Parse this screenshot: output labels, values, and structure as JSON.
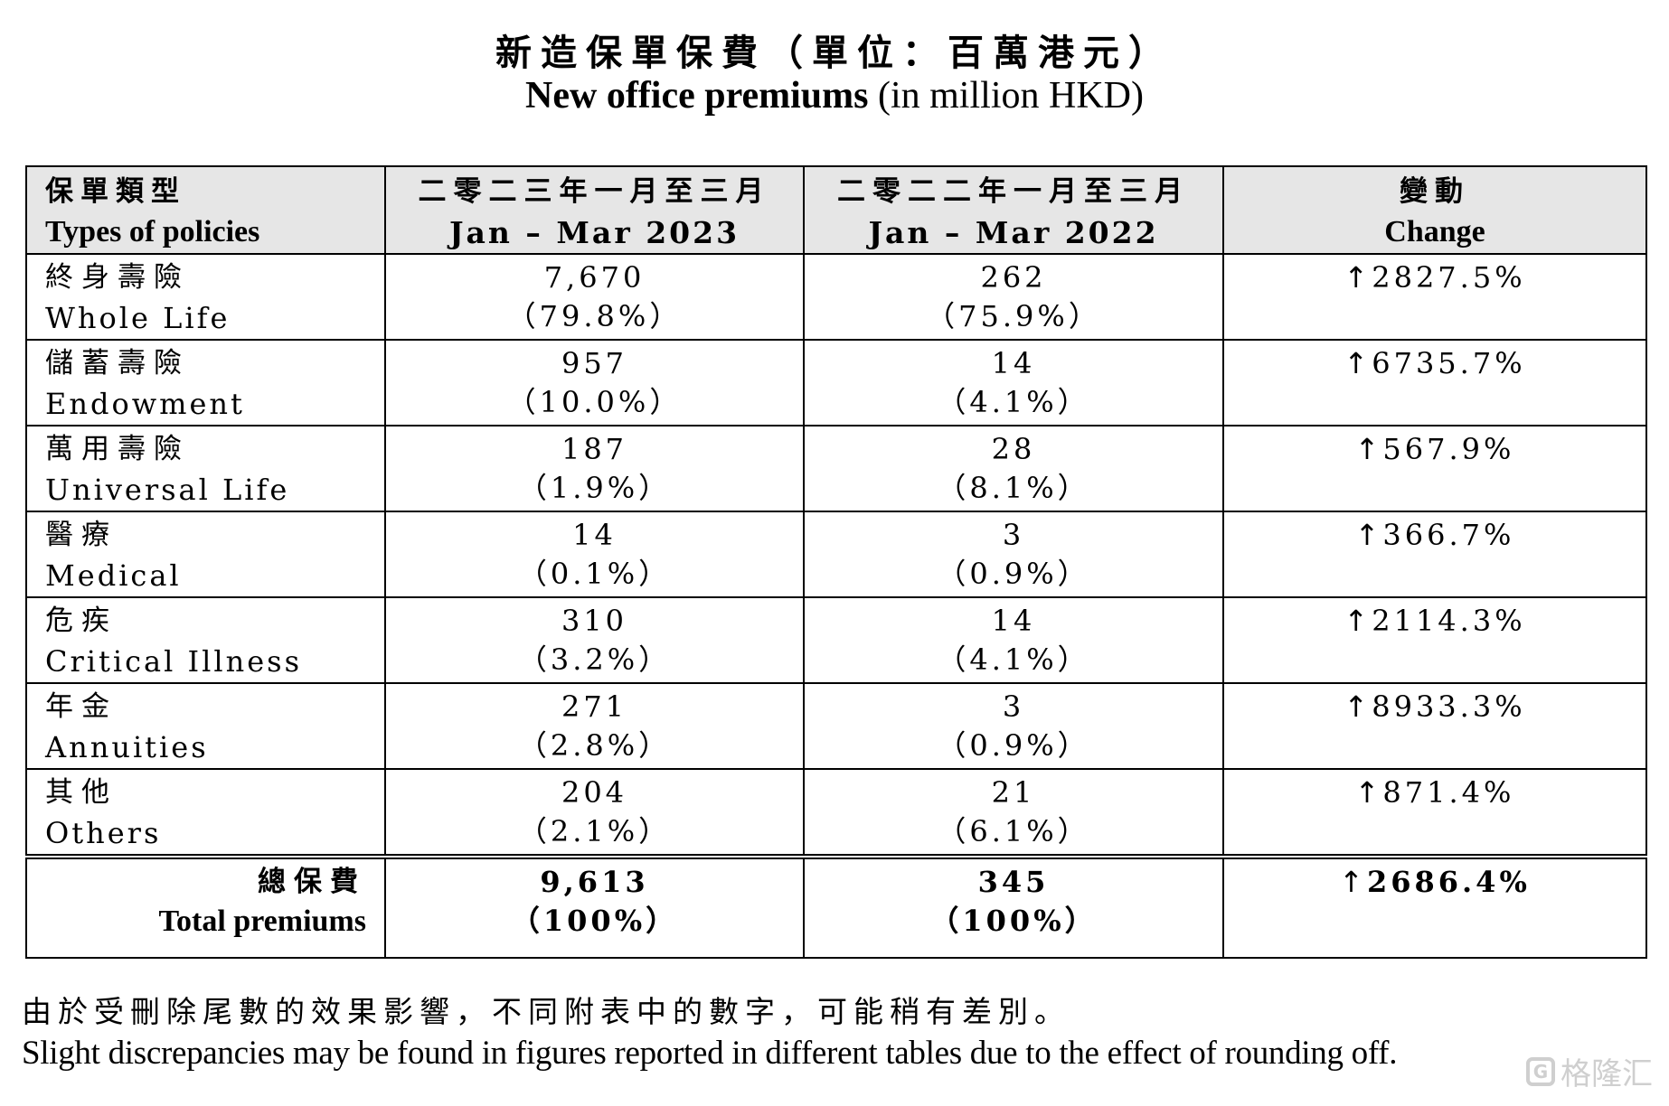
{
  "title": {
    "zh": "新造保單保費（單位：百萬港元）",
    "en_bold": "New office premiums",
    "en_rest": " (in million HKD)"
  },
  "table": {
    "headers": [
      {
        "zh": "保單類型",
        "en": "Types of policies"
      },
      {
        "zh": "二零二三年一月至三月",
        "en": "Jan – Mar 2023"
      },
      {
        "zh": "二零二二年一月至三月",
        "en": "Jan – Mar 2022"
      },
      {
        "zh": "變動",
        "en": "Change"
      }
    ],
    "rows": [
      {
        "zh": "終身壽險",
        "en": "Whole Life",
        "v2023": "7,670",
        "p2023": "（79.8%）",
        "v2022": "262",
        "p2022": "（75.9%）",
        "change": "2827.5%"
      },
      {
        "zh": "儲蓄壽險",
        "en": "Endowment",
        "v2023": "957",
        "p2023": "（10.0%）",
        "v2022": "14",
        "p2022": "（4.1%）",
        "change": "6735.7%"
      },
      {
        "zh": "萬用壽險",
        "en": "Universal Life",
        "v2023": "187",
        "p2023": "（1.9%）",
        "v2022": "28",
        "p2022": "（8.1%）",
        "change": "567.9%"
      },
      {
        "zh": "醫療",
        "en": "Medical",
        "v2023": "14",
        "p2023": "（0.1%）",
        "v2022": "3",
        "p2022": "（0.9%）",
        "change": "366.7%"
      },
      {
        "zh": "危疾",
        "en": "Critical Illness",
        "v2023": "310",
        "p2023": "（3.2%）",
        "v2022": "14",
        "p2022": "（4.1%）",
        "change": "2114.3%"
      },
      {
        "zh": "年金",
        "en": "Annuities",
        "v2023": "271",
        "p2023": "（2.8%）",
        "v2022": "3",
        "p2022": "（0.9%）",
        "change": "8933.3%"
      },
      {
        "zh": "其他",
        "en": "Others",
        "v2023": "204",
        "p2023": "（2.1%）",
        "v2022": "21",
        "p2022": "（6.1%）",
        "change": "871.4%"
      }
    ],
    "total": {
      "zh": "總保費",
      "en": "Total premiums",
      "v2023": "9,613",
      "p2023": "（100%）",
      "v2022": "345",
      "p2022": "（100%）",
      "change": "2686.4%"
    },
    "up_arrow": "↑"
  },
  "footnote": {
    "zh": "由於受刪除尾數的效果影響，不同附表中的數字，可能稍有差別。",
    "en": "Slight discrepancies may be found in figures reported in different tables due to the effect of rounding off."
  },
  "watermark": {
    "icon": "gelonghui-logo-icon",
    "text": "格隆汇"
  }
}
